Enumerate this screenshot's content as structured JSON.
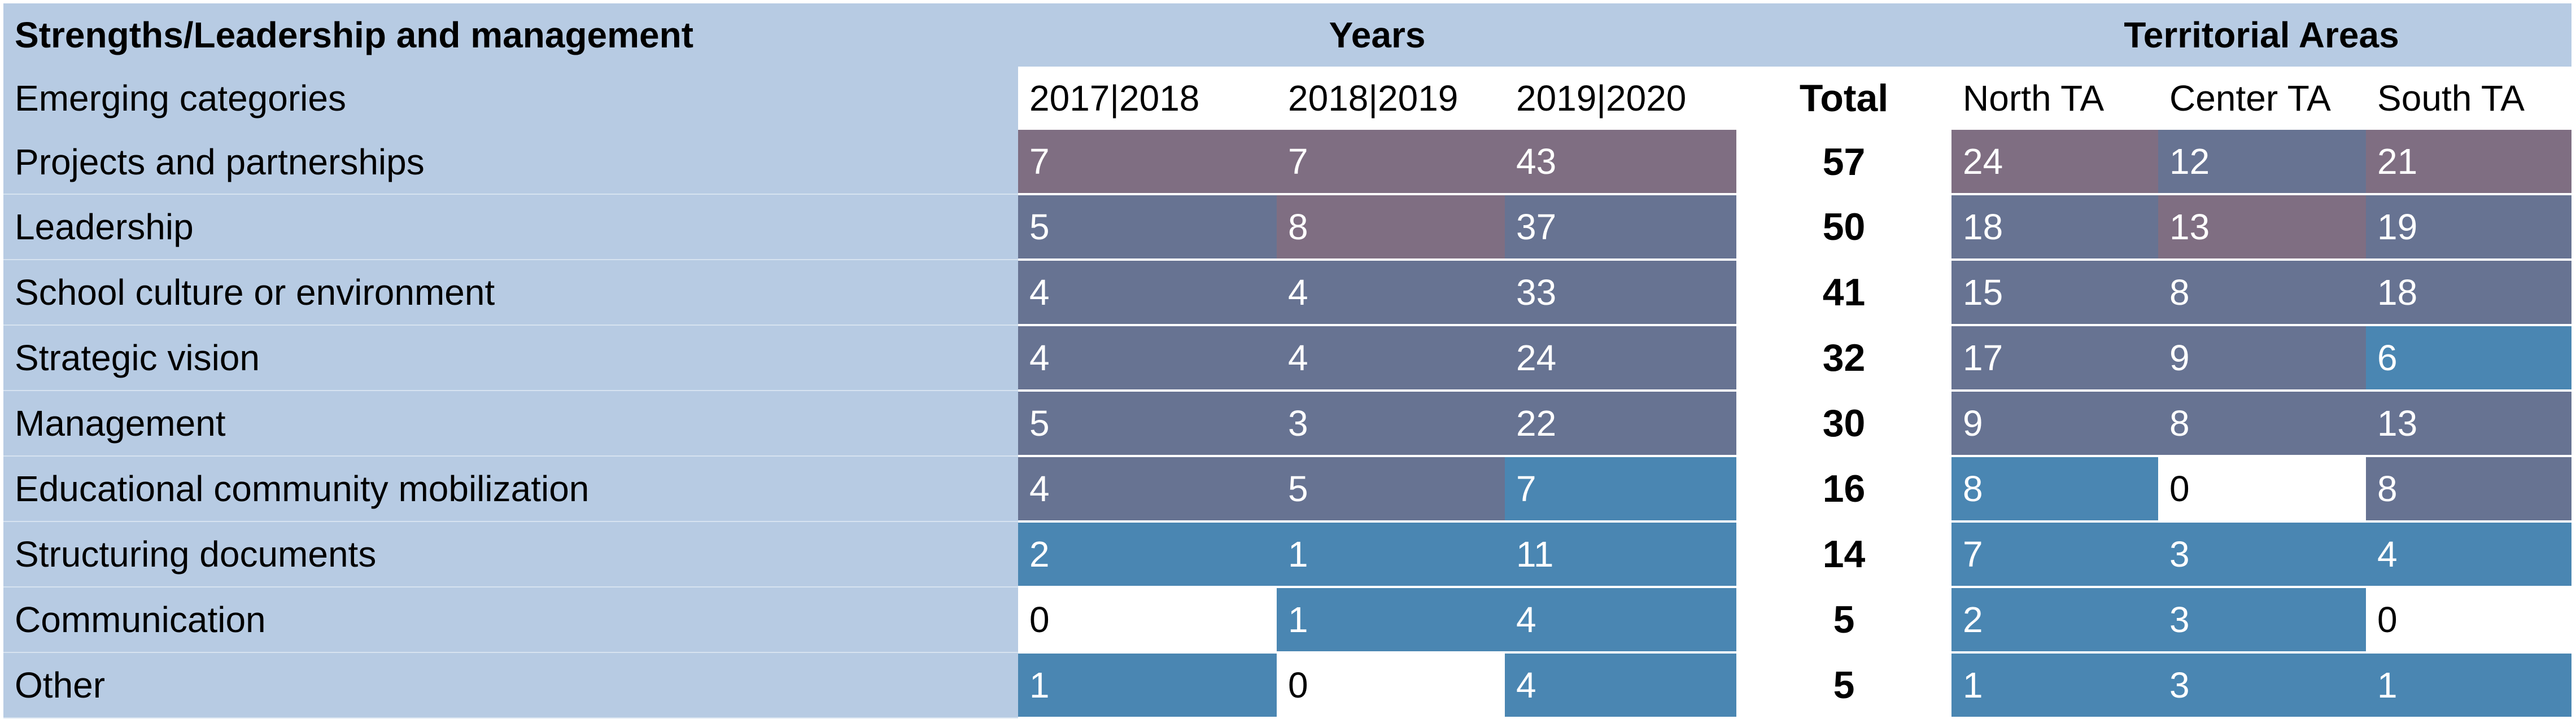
{
  "header": {
    "title": "Strengths/Leadership and management",
    "years_group": "Years",
    "areas_group": "Territorial Areas"
  },
  "columns": {
    "category": "Emerging categories",
    "y1": "2017|2018",
    "y2": "2018|2019",
    "y3": "2019|2020",
    "total": "Total",
    "north": "North TA",
    "center": "Center TA",
    "south": "South TA"
  },
  "colors": {
    "header_bg": "#b7cbe3",
    "high": "#7f6e82",
    "medium": "#677392",
    "low": "#4a86b2",
    "zero": "#ffffff"
  },
  "rows": [
    {
      "label": "Projects and partnerships",
      "y1": "7",
      "y2": "7",
      "y3": "43",
      "total": "57",
      "north": "24",
      "center": "12",
      "south": "21"
    },
    {
      "label": "Leadership",
      "y1": "5",
      "y2": "8",
      "y3": "37",
      "total": "50",
      "north": "18",
      "center": "13",
      "south": "19"
    },
    {
      "label": "School culture or environment",
      "y1": "4",
      "y2": "4",
      "y3": "33",
      "total": "41",
      "north": "15",
      "center": "8",
      "south": "18"
    },
    {
      "label": "Strategic vision",
      "y1": "4",
      "y2": "4",
      "y3": "24",
      "total": "32",
      "north": "17",
      "center": "9",
      "south": "6"
    },
    {
      "label": "Management",
      "y1": "5",
      "y2": "3",
      "y3": "22",
      "total": "30",
      "north": "9",
      "center": "8",
      "south": "13"
    },
    {
      "label": "Educational community mobilization",
      "y1": "4",
      "y2": "5",
      "y3": "7",
      "total": "16",
      "north": "8",
      "center": "0",
      "south": "8"
    },
    {
      "label": "Structuring documents",
      "y1": "2",
      "y2": "1",
      "y3": "11",
      "total": "14",
      "north": "7",
      "center": "3",
      "south": "4"
    },
    {
      "label": "Communication",
      "y1": "0",
      "y2": "1",
      "y3": "4",
      "total": "5",
      "north": "2",
      "center": "3",
      "south": "0"
    },
    {
      "label": "Other",
      "y1": "1",
      "y2": "0",
      "y3": "4",
      "total": "5",
      "north": "1",
      "center": "3",
      "south": "1"
    }
  ]
}
